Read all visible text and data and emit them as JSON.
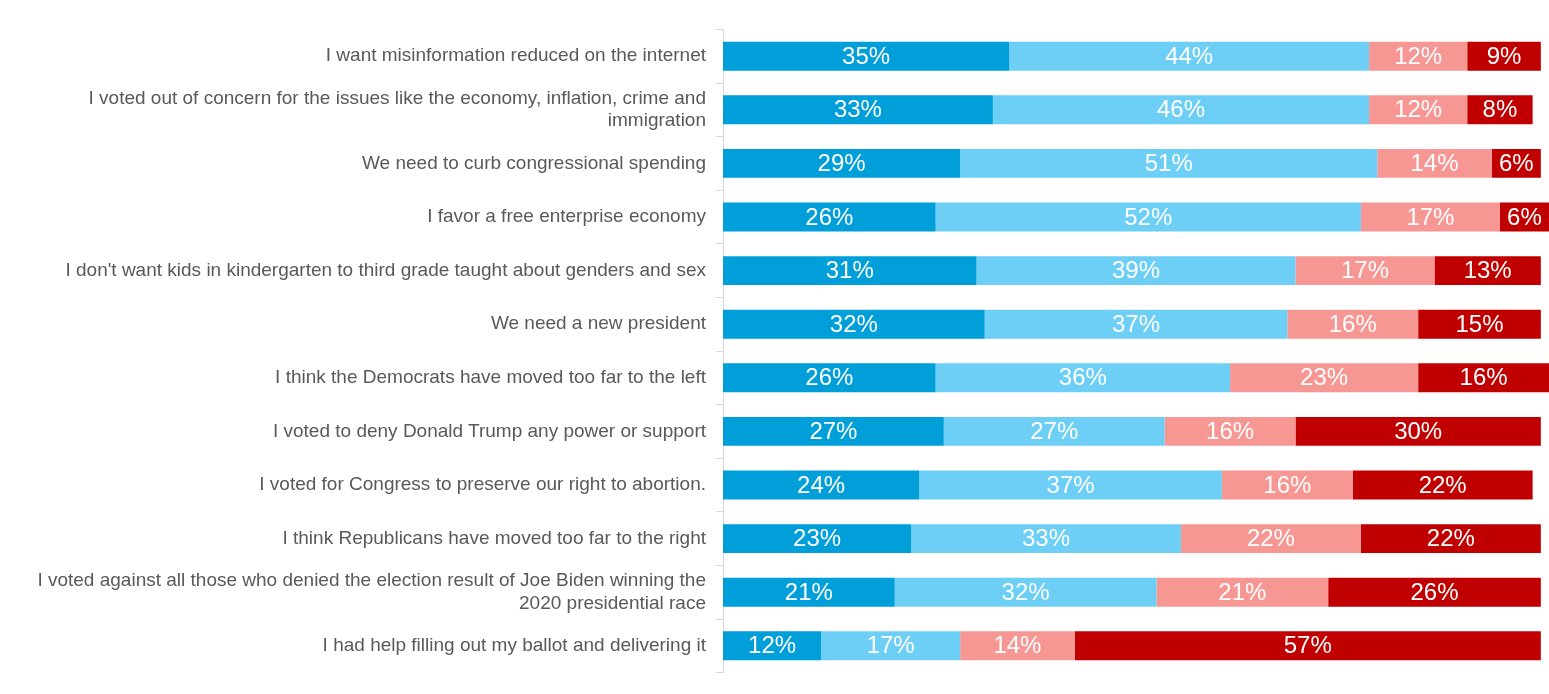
{
  "chart_data": {
    "type": "bar",
    "orientation": "horizontal",
    "stacked": true,
    "tick_labels": "y",
    "categories": [
      "I want misinformation reduced on the internet",
      "I voted out of concern for the issues like the economy, inflation, crime and immigration",
      "We need to curb congressional spending",
      "I favor a free enterprise economy",
      "I don't want kids in kindergarten to third grade taught about genders and sex",
      "We need a new president",
      "I think the Democrats have moved too far to the left",
      "I voted to deny Donald Trump any power or support",
      "I voted for Congress to preserve our right to abortion.",
      "I think Republicans have moved too far to the right",
      "I voted against all those who denied the election result of Joe Biden winning the 2020 presidential race",
      "I had help filling out my ballot and delivering it"
    ],
    "series": [
      {
        "color": "#009fda",
        "values": [
          35,
          33,
          29,
          26,
          31,
          32,
          26,
          27,
          24,
          23,
          21,
          12
        ],
        "value_labels": [
          "35%",
          "33%",
          "29%",
          "26%",
          "31%",
          "32%",
          "26%",
          "27%",
          "24%",
          "23%",
          "21%",
          "12%"
        ]
      },
      {
        "color": "#6dcff6",
        "values": [
          44,
          46,
          51,
          52,
          39,
          37,
          36,
          27,
          37,
          33,
          32,
          17
        ],
        "value_labels": [
          "44%",
          "46%",
          "51%",
          "52%",
          "39%",
          "37%",
          "36%",
          "27%",
          "37%",
          "33%",
          "32%",
          "17%"
        ]
      },
      {
        "color": "#f69794",
        "values": [
          12,
          12,
          14,
          17,
          17,
          16,
          23,
          16,
          16,
          22,
          21,
          14
        ],
        "value_labels": [
          "12%",
          "12%",
          "14%",
          "17%",
          "17%",
          "16%",
          "23%",
          "16%",
          "16%",
          "22%",
          "21%",
          "14%"
        ]
      },
      {
        "color": "#c00000",
        "values": [
          9,
          8,
          6,
          6,
          13,
          15,
          16,
          30,
          22,
          22,
          26,
          57
        ],
        "value_labels": [
          "9%",
          "8%",
          "6%",
          "6%",
          "13%",
          "15%",
          "16%",
          "30%",
          "22%",
          "22%",
          "26%",
          "57%"
        ]
      }
    ]
  }
}
